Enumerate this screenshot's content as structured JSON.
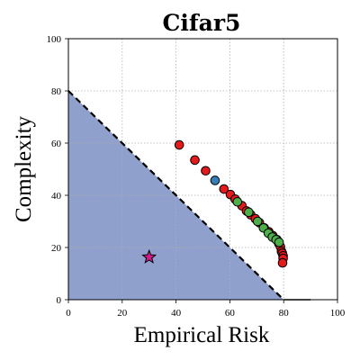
{
  "chart_data": {
    "type": "scatter",
    "title": "Cifar5",
    "xlabel": "Empirical Risk",
    "ylabel": "Complexity",
    "xlim": [
      0,
      100
    ],
    "ylim": [
      0,
      100
    ],
    "xticks": [
      "0",
      "20",
      "40",
      "60",
      "80",
      "100"
    ],
    "yticks": [
      "0",
      "20",
      "40",
      "60",
      "80",
      "100"
    ],
    "grid": true,
    "boundary": {
      "line": [
        [
          0,
          80
        ],
        [
          80,
          0
        ]
      ],
      "region_fill": "#8ea0cb",
      "line_color": "#000000",
      "style": "dashed"
    },
    "tail_line": [
      [
        80,
        0
      ],
      [
        90,
        0
      ]
    ],
    "series": [
      {
        "color": "#e41a1c",
        "marker": "circle",
        "x": [
          41.2,
          47.0,
          51.0,
          57.8,
          60.2,
          62.0,
          64.5,
          66.2,
          67.8,
          69.5,
          71.0,
          72.8,
          74.5,
          76.0,
          77.5,
          78.2,
          78.8,
          79.2,
          79.5,
          79.8,
          79.8,
          79.6
        ],
        "y": [
          59.3,
          53.5,
          49.4,
          42.4,
          40.3,
          38.5,
          36.0,
          34.0,
          32.5,
          31.0,
          29.5,
          27.5,
          26.0,
          24.5,
          23.0,
          21.5,
          20.3,
          18.5,
          17.8,
          16.8,
          15.8,
          14.1
        ]
      },
      {
        "color": "#377eb8",
        "marker": "circle",
        "x": [
          54.5
        ],
        "y": [
          45.7
        ]
      },
      {
        "color": "#4daf4a",
        "marker": "circle",
        "x": [
          62.8,
          67.0,
          70.3,
          72.5,
          74.3,
          75.8,
          77.2,
          78.3
        ],
        "y": [
          37.5,
          33.5,
          30.0,
          27.5,
          25.5,
          24.0,
          23.0,
          22.0
        ]
      },
      {
        "color": "#d01c8b",
        "marker": "star",
        "x": [
          30.0
        ],
        "y": [
          16.3
        ]
      }
    ]
  }
}
